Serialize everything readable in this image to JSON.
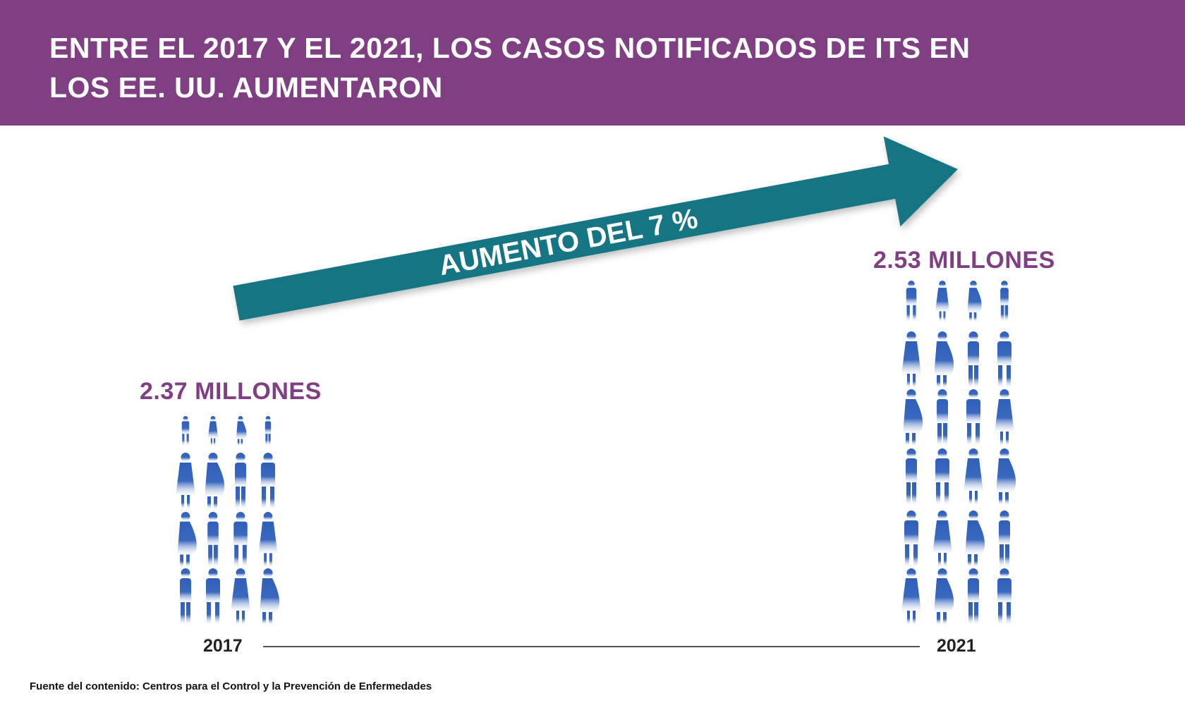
{
  "header": {
    "title": "ENTRE EL 2017 Y EL 2021, LOS CASOS NOTIFICADOS DE ITS EN LOS EE. UU. AUMENTARON"
  },
  "chart_data": {
    "type": "pictogram",
    "categories": [
      "2017",
      "2021"
    ],
    "values": [
      2.37,
      2.53
    ],
    "value_labels": [
      "2.37 MILLONES",
      "2.53 MILLONES"
    ],
    "annotation": "AUMENTO DEL 7 %"
  },
  "source": "Fuente del contenido: Centros para el Control y la Prevención de Enfermedades",
  "colors": {
    "banner": "#7f3f82",
    "arrow": "#137483",
    "figure": "#2f5fb8",
    "amount_text": "#7f3f82"
  }
}
